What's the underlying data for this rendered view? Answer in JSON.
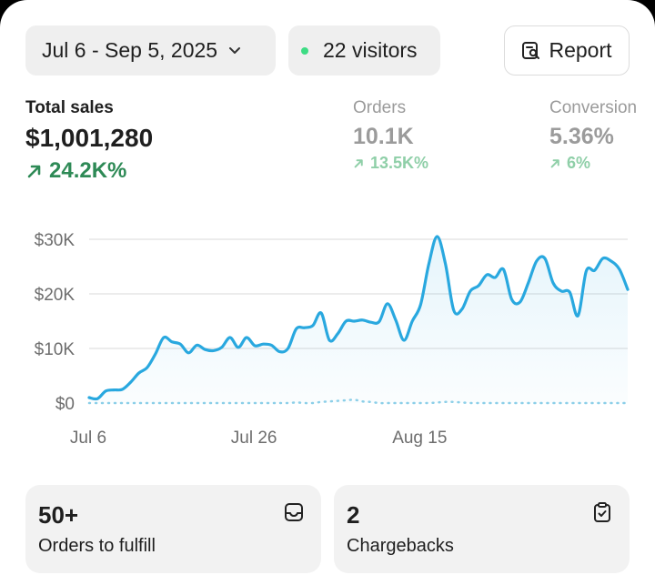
{
  "filters": {
    "date_range": "Jul 6 - Sep 5, 2025",
    "visitors": "22 visitors",
    "visitors_dot_color": "#3ddc84"
  },
  "report_button": {
    "label": "Report",
    "icon": "report-search-icon"
  },
  "metrics": [
    {
      "label": "Total sales",
      "value": "$1,001,280",
      "change": "24.2K%",
      "trend": "up"
    },
    {
      "label": "Orders",
      "value": "10.1K",
      "change": "13.5K%",
      "trend": "up"
    },
    {
      "label": "Conversion",
      "value": "5.36%",
      "change": "6%",
      "trend": "up"
    }
  ],
  "chart_data": {
    "type": "line",
    "x_ticks": [
      "Jul 6",
      "Jul 26",
      "Aug 15"
    ],
    "y_ticks": [
      "$0",
      "$10K",
      "$20K",
      "$30K"
    ],
    "ylim": [
      0,
      30000
    ],
    "grid": true,
    "colors": {
      "current": "#29a8df",
      "comparison": "#8ccfe8"
    },
    "series": [
      {
        "style": "solid",
        "values": [
          1000,
          800,
          2200,
          2400,
          2500,
          3800,
          5500,
          6500,
          9000,
          12000,
          11200,
          10800,
          9200,
          10600,
          9800,
          9600,
          10200,
          12000,
          10200,
          12000,
          10500,
          10800,
          10600,
          9400,
          10000,
          13600,
          13800,
          14200,
          16500,
          11500,
          12700,
          15000,
          15000,
          15200,
          14800,
          14900,
          18200,
          15200,
          11500,
          15000,
          18000,
          25500,
          30500,
          25500,
          17000,
          17200,
          20500,
          21500,
          23500,
          23000,
          24500,
          19000,
          18500,
          22000,
          26000,
          26500,
          22000,
          20500,
          20300,
          16000,
          24200,
          24300,
          26500,
          26000,
          24500,
          20800
        ]
      },
      {
        "style": "dotted",
        "values": [
          0,
          0,
          0,
          0,
          0,
          0,
          0,
          0,
          0,
          0,
          0,
          0,
          0,
          0,
          0,
          0,
          0,
          0,
          0,
          0,
          0,
          0,
          0,
          0,
          0,
          100,
          0,
          0,
          200,
          300,
          400,
          500,
          600,
          300,
          200,
          0,
          0,
          0,
          0,
          0,
          0,
          0,
          100,
          200,
          200,
          100,
          0,
          0,
          0,
          0,
          0,
          0,
          0,
          0,
          0,
          0,
          0,
          0,
          0,
          0,
          0,
          0,
          0,
          0,
          0,
          0
        ]
      }
    ]
  },
  "tiles": [
    {
      "value": "50+",
      "caption": "Orders to fulfill",
      "icon": "inbox-tray-icon"
    },
    {
      "value": "2",
      "caption": "Chargebacks",
      "icon": "clipboard-check-icon"
    }
  ]
}
